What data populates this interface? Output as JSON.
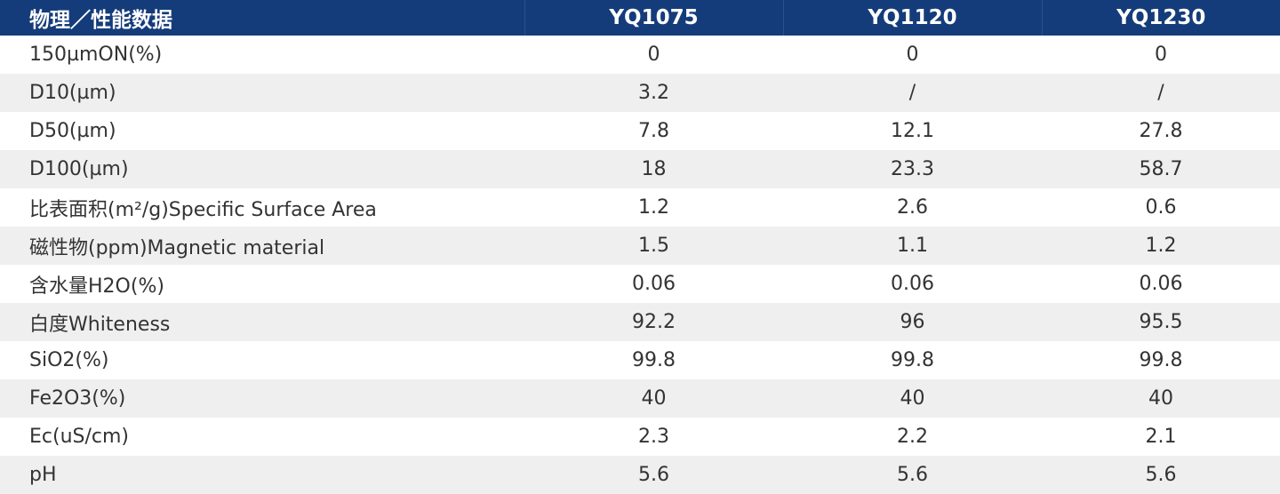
{
  "table": {
    "headers": [
      "物理／性能数据",
      "YQ1075",
      "YQ1120",
      "YQ1230"
    ],
    "rows": [
      [
        "150µmON(%)",
        "0",
        "0",
        "0"
      ],
      [
        "D10(µm)",
        "3.2",
        "/",
        "/"
      ],
      [
        "D50(µm)",
        "7.8",
        "12.1",
        "27.8"
      ],
      [
        "D100(µm)",
        "18",
        "23.3",
        "58.7"
      ],
      [
        "比表面积(m²/g)Specific Surface Area",
        "1.2",
        "2.6",
        "0.6"
      ],
      [
        "磁性物(ppm)Magnetic material",
        "1.5",
        "1.1",
        "1.2"
      ],
      [
        "含水量H2O(%)",
        "0.06",
        "0.06",
        "0.06"
      ],
      [
        "白度Whiteness",
        "92.2",
        "96",
        "95.5"
      ],
      [
        "SiO2(%)",
        "99.8",
        "99.8",
        "99.8"
      ],
      [
        "Fe2O3(%)",
        "40",
        "40",
        "40"
      ],
      [
        "Ec(uS/cm)",
        "2.3",
        "2.2",
        "2.1"
      ],
      [
        "pH",
        "5.6",
        "5.6",
        "5.6"
      ]
    ]
  },
  "colors": {
    "header_background": "#153c7a",
    "header_text": "#ffffff",
    "row_alt_background": "#efefef",
    "body_text": "#333333"
  }
}
